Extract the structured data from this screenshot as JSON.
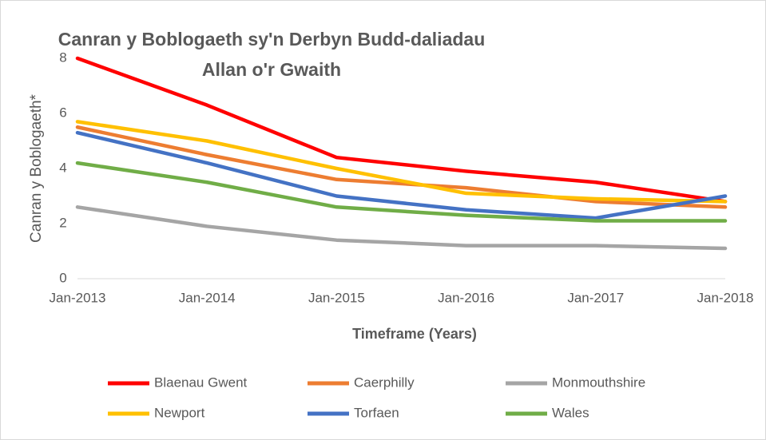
{
  "chart_data": {
    "type": "line",
    "title": "Canran y Boblogaeth sy'n Derbyn Budd-daliadau Allan o'r Gwaith",
    "x_label": "Timeframe (Years)",
    "y_label": "Canran y Boblogaeth*",
    "categories": [
      "Jan-2013",
      "Jan-2014",
      "Jan-2015",
      "Jan-2016",
      "Jan-2017",
      "Jan-2018"
    ],
    "series": [
      {
        "name": "Blaenau Gwent",
        "color": "#ff0000",
        "values": [
          8.0,
          6.3,
          4.4,
          3.9,
          3.5,
          2.8
        ]
      },
      {
        "name": "Caerphilly",
        "color": "#ed7d31",
        "values": [
          5.5,
          4.5,
          3.6,
          3.3,
          2.8,
          2.6
        ]
      },
      {
        "name": "Monmouthshire",
        "color": "#a5a5a5",
        "values": [
          2.6,
          1.9,
          1.4,
          1.2,
          1.2,
          1.1
        ]
      },
      {
        "name": "Newport",
        "color": "#ffc000",
        "values": [
          5.7,
          5.0,
          4.0,
          3.1,
          2.9,
          2.8
        ]
      },
      {
        "name": "Torfaen",
        "color": "#4472c4",
        "values": [
          5.3,
          4.2,
          3.0,
          2.5,
          2.2,
          3.0
        ]
      },
      {
        "name": "Wales",
        "color": "#70ad47",
        "values": [
          4.2,
          3.5,
          2.6,
          2.3,
          2.1,
          2.1
        ]
      }
    ],
    "ylim": [
      0,
      8
    ],
    "yticks": [
      0,
      2,
      4,
      6,
      8
    ],
    "grid": false,
    "legend": "bottom"
  }
}
